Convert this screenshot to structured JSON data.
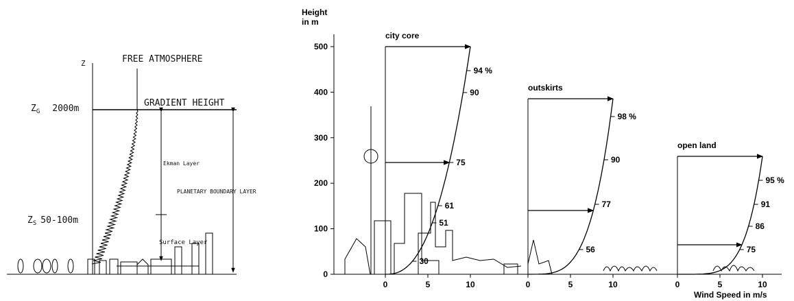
{
  "left_diagram": {
    "z_axis_label": "Z",
    "free_atmosphere": "FREE ATMOSPHERE",
    "gradient_level": {
      "symbol": "Z",
      "subscript": "G",
      "height": "2000m"
    },
    "gradient_height": "GRADIENT HEIGHT",
    "ekman_layer": "Ekman Layer",
    "planetary_boundary_layer": "PLANETARY BOUNDARY LAYER",
    "surface_level": {
      "symbol": "Z",
      "subscript": "S",
      "height": "50-100m"
    },
    "surface_layer": "Surface Layer"
  },
  "wind_profiles": {
    "y_axis_label": [
      "Height",
      "in m"
    ],
    "yticks": [
      0,
      100,
      200,
      300,
      400,
      500
    ],
    "x_axis_label": "Wind Speed in m/s",
    "xticks": [
      0,
      5,
      10
    ],
    "panels": [
      {
        "name": "city core",
        "labels": [
          "94 %",
          "90",
          "75",
          "61",
          "51",
          "30"
        ]
      },
      {
        "name": "outskirts",
        "labels": [
          "98 %",
          "90",
          "77",
          "56"
        ]
      },
      {
        "name": "open land",
        "labels": [
          "95 %",
          "91",
          "86",
          "75"
        ]
      }
    ]
  }
}
